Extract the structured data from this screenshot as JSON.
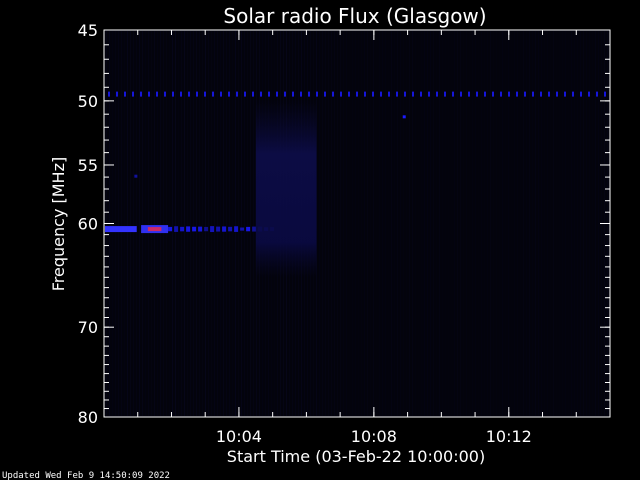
{
  "chart_data": {
    "type": "heatmap",
    "title": "Solar radio Flux (Glasgow)",
    "xlabel": "Start Time (03-Feb-22 10:00:00)",
    "ylabel": "Frequency [MHz]",
    "x_unit": "minutes after start",
    "xlim": [
      0,
      15
    ],
    "ylim": [
      45,
      80
    ],
    "y_axis_inverted": true,
    "y_scale": "log",
    "x_ticks": [
      {
        "value": 4,
        "label": "10:04"
      },
      {
        "value": 8,
        "label": "10:08"
      },
      {
        "value": 12,
        "label": "10:12"
      }
    ],
    "y_ticks": [
      {
        "value": 45,
        "label": "45"
      },
      {
        "value": 50,
        "label": "50"
      },
      {
        "value": 55,
        "label": "55"
      },
      {
        "value": 60,
        "label": "60"
      },
      {
        "value": 70,
        "label": "70"
      },
      {
        "value": 80,
        "label": "80"
      }
    ],
    "background_color": "#000000",
    "signal_color": "#1a1aff",
    "features": [
      {
        "kind": "continuous-interference-band",
        "freq_mhz": 49.5,
        "t_start": 0,
        "t_end": 15
      },
      {
        "kind": "interference-band",
        "freq_mhz": 60.5,
        "t_start": 0,
        "t_end": 5
      },
      {
        "kind": "enhanced-emission-patch",
        "freq_range_mhz": [
          50,
          65
        ],
        "t_start": 4.5,
        "t_end": 6.3
      },
      {
        "kind": "point",
        "freq_mhz": 51.2,
        "t": 8.9
      }
    ]
  },
  "footer": {
    "updated": "Updated Wed Feb  9 14:50:09 2022"
  }
}
